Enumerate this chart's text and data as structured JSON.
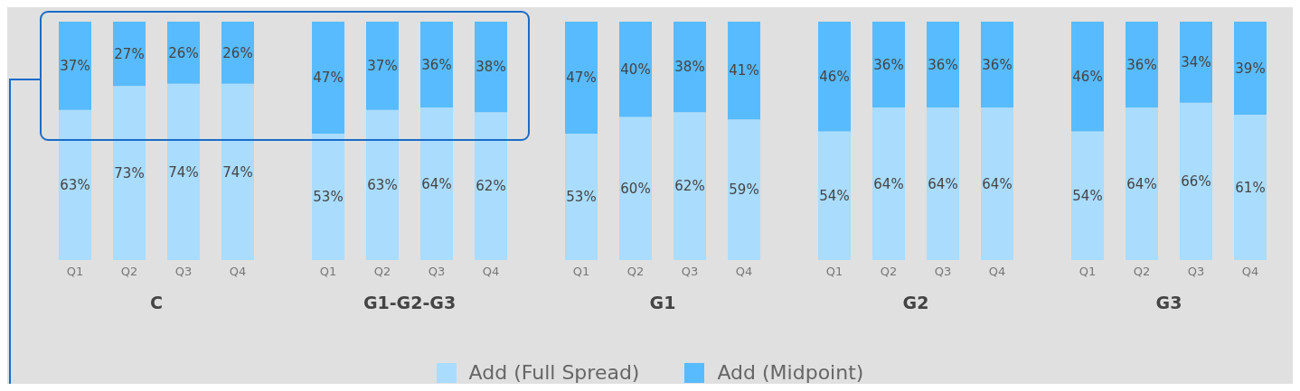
{
  "chart_data": [
    {
      "type": "bar",
      "xlabel": "C",
      "categories": [
        "Q1",
        "Q2",
        "Q3",
        "Q4"
      ],
      "stacked": true,
      "legend": "bottom",
      "series": [
        {
          "name": "Add (Full Spread)",
          "color": "#aadcfd",
          "values": [
            63,
            73,
            74,
            74
          ],
          "value_labels": [
            "63%",
            "73%",
            "74%",
            "74%"
          ]
        },
        {
          "name": "Add (Midpoint)",
          "color": "#58bbfd",
          "values": [
            37,
            27,
            26,
            26
          ],
          "value_labels": [
            "37%",
            "27%",
            "26%",
            "26%"
          ]
        }
      ]
    },
    {
      "type": "bar",
      "xlabel": "G1-G2-G3",
      "categories": [
        "Q1",
        "Q2",
        "Q3",
        "Q4"
      ],
      "stacked": true,
      "series": [
        {
          "color": "#aadcfd",
          "values": [
            53,
            63,
            64,
            62
          ],
          "value_labels": [
            "53%",
            "63%",
            "64%",
            "62%"
          ]
        },
        {
          "color": "#58bbfd",
          "values": [
            47,
            37,
            36,
            38
          ],
          "value_labels": [
            "47%",
            "37%",
            "36%",
            "38%"
          ]
        }
      ]
    },
    {
      "type": "bar",
      "xlabel": "G1",
      "categories": [
        "Q1",
        "Q2",
        "Q3",
        "Q4"
      ],
      "stacked": true,
      "series": [
        {
          "color": "#aadcfd",
          "values": [
            53,
            60,
            62,
            59
          ],
          "value_labels": [
            "53%",
            "60%",
            "62%",
            "59%"
          ]
        },
        {
          "color": "#58bbfd",
          "values": [
            47,
            40,
            38,
            41
          ],
          "value_labels": [
            "47%",
            "40%",
            "38%",
            "41%"
          ]
        }
      ]
    },
    {
      "type": "bar",
      "xlabel": "G2",
      "categories": [
        "Q1",
        "Q2",
        "Q3",
        "Q4"
      ],
      "stacked": true,
      "series": [
        {
          "color": "#aadcfd",
          "values": [
            54,
            64,
            64,
            64
          ],
          "value_labels": [
            "54%",
            "64%",
            "64%",
            "64%"
          ]
        },
        {
          "color": "#58bbfd",
          "values": [
            46,
            36,
            36,
            36
          ],
          "value_labels": [
            "46%",
            "36%",
            "36%",
            "36%"
          ]
        }
      ]
    },
    {
      "type": "bar",
      "xlabel": "G3",
      "categories": [
        "Q1",
        "Q2",
        "Q3",
        "Q4"
      ],
      "stacked": true,
      "series": [
        {
          "color": "#aadcfd",
          "values": [
            54,
            64,
            66,
            61
          ],
          "value_labels": [
            "54%",
            "64%",
            "66%",
            "61%"
          ]
        },
        {
          "color": "#58bbfd",
          "values": [
            46,
            36,
            34,
            39
          ],
          "value_labels": [
            "46%",
            "36%",
            "34%",
            "39%"
          ]
        }
      ]
    }
  ]
}
